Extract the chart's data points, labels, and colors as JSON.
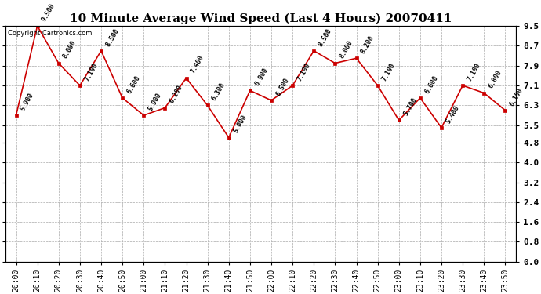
{
  "title": "10 Minute Average Wind Speed (Last 4 Hours) 20070411",
  "copyright": "Copyright Cartronics.com",
  "x_labels": [
    "20:00",
    "20:10",
    "20:20",
    "20:30",
    "20:40",
    "20:50",
    "21:00",
    "21:10",
    "21:20",
    "21:30",
    "21:40",
    "21:50",
    "22:00",
    "22:10",
    "22:20",
    "22:30",
    "22:40",
    "22:50",
    "23:00",
    "23:10",
    "23:20",
    "23:30",
    "23:40",
    "23:50"
  ],
  "y_values": [
    5.9,
    9.5,
    8.0,
    7.1,
    8.5,
    6.6,
    5.9,
    6.2,
    7.4,
    6.3,
    5.0,
    6.9,
    6.5,
    7.1,
    8.5,
    8.0,
    8.2,
    7.1,
    5.7,
    6.6,
    5.4,
    7.1,
    6.8,
    6.1
  ],
  "point_labels": [
    "5.900",
    "9.500",
    "8.000",
    "7.100",
    "8.500",
    "6.600",
    "5.900",
    "6.200",
    "7.400",
    "6.300",
    "5.000",
    "6.900",
    "6.500",
    "7.100",
    "8.500",
    "8.000",
    "8.200",
    "7.100",
    "5.700",
    "6.600",
    "5.400",
    "7.100",
    "6.800",
    "6.100"
  ],
  "line_color": "#cc0000",
  "marker_color": "#cc0000",
  "bg_color": "#ffffff",
  "grid_color": "#aaaaaa",
  "ylim": [
    0.0,
    9.5
  ],
  "yticks": [
    0.0,
    0.8,
    1.6,
    2.4,
    3.2,
    4.0,
    4.8,
    5.5,
    6.3,
    7.1,
    7.9,
    8.7,
    9.5
  ],
  "ytick_labels": [
    "0.0",
    "0.8",
    "1.6",
    "2.4",
    "3.2",
    "4.0",
    "4.8",
    "5.5",
    "6.3",
    "7.1",
    "7.9",
    "8.7",
    "9.5"
  ]
}
